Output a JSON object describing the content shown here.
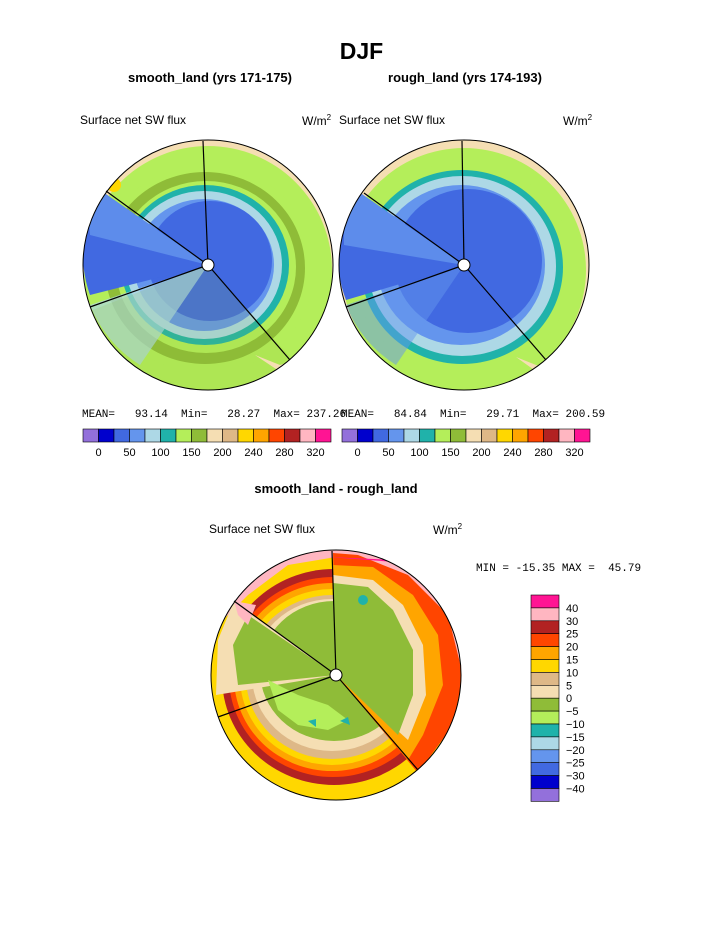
{
  "figure": {
    "title": "DJF"
  },
  "chart_data": [
    {
      "type": "heatmap",
      "projection": "polar stereographic",
      "title": "smooth_land (yrs 171-175)",
      "left_label": "Surface net SW flux",
      "units": "W/m",
      "units_sup": "2",
      "stats": {
        "mean_label": "MEAN=",
        "mean": "93.14",
        "min_label": "Min=",
        "min": "28.27",
        "max_label": "Max=",
        "max": "237.26"
      },
      "colorbar": {
        "orientation": "horizontal",
        "colors": [
          "#9370db",
          "#0000cd",
          "#4169e1",
          "#6495ed",
          "#add8e6",
          "#20b2aa",
          "#b4ee5a",
          "#8fbc38",
          "#f5deb3",
          "#deb887",
          "#ffd700",
          "#ffa500",
          "#ff4500",
          "#b22222",
          "#ffb6c1",
          "#ff1493"
        ],
        "tick_labels": [
          "0",
          "50",
          "100",
          "150",
          "200",
          "240",
          "280",
          "320"
        ]
      }
    },
    {
      "type": "heatmap",
      "projection": "polar stereographic",
      "title": "rough_land (yrs 174-193)",
      "left_label": "Surface net SW flux",
      "units": "W/m",
      "units_sup": "2",
      "stats": {
        "mean_label": "MEAN=",
        "mean": "84.84",
        "min_label": "Min=",
        "min": "29.71",
        "max_label": "Max=",
        "max": "200.59"
      },
      "colorbar": {
        "orientation": "horizontal",
        "colors": [
          "#9370db",
          "#0000cd",
          "#4169e1",
          "#6495ed",
          "#add8e6",
          "#20b2aa",
          "#b4ee5a",
          "#8fbc38",
          "#f5deb3",
          "#deb887",
          "#ffd700",
          "#ffa500",
          "#ff4500",
          "#b22222",
          "#ffb6c1",
          "#ff1493"
        ],
        "tick_labels": [
          "0",
          "50",
          "100",
          "150",
          "200",
          "240",
          "280",
          "320"
        ]
      }
    },
    {
      "type": "heatmap",
      "projection": "polar stereographic",
      "title": "smooth_land - rough_land",
      "left_label": "Surface net SW flux",
      "units": "W/m",
      "units_sup": "2",
      "stats": {
        "min_label": "MIN =",
        "min": "-15.35",
        "max_label": "MAX =",
        "max": "45.79"
      },
      "colorbar": {
        "orientation": "vertical",
        "colors_top_to_bottom": [
          "#ff1493",
          "#ffb6c1",
          "#b22222",
          "#ff4500",
          "#ffa500",
          "#ffd700",
          "#deb887",
          "#f5deb3",
          "#8fbc38",
          "#b4ee5a",
          "#20b2aa",
          "#add8e6",
          "#6495ed",
          "#4169e1",
          "#0000cd",
          "#9370db"
        ],
        "tick_labels_top_to_bottom": [
          "40",
          "30",
          "25",
          "20",
          "15",
          "10",
          "5",
          "0",
          "−5",
          "−10",
          "−15",
          "−20",
          "−25",
          "−30",
          "−40"
        ]
      }
    }
  ]
}
